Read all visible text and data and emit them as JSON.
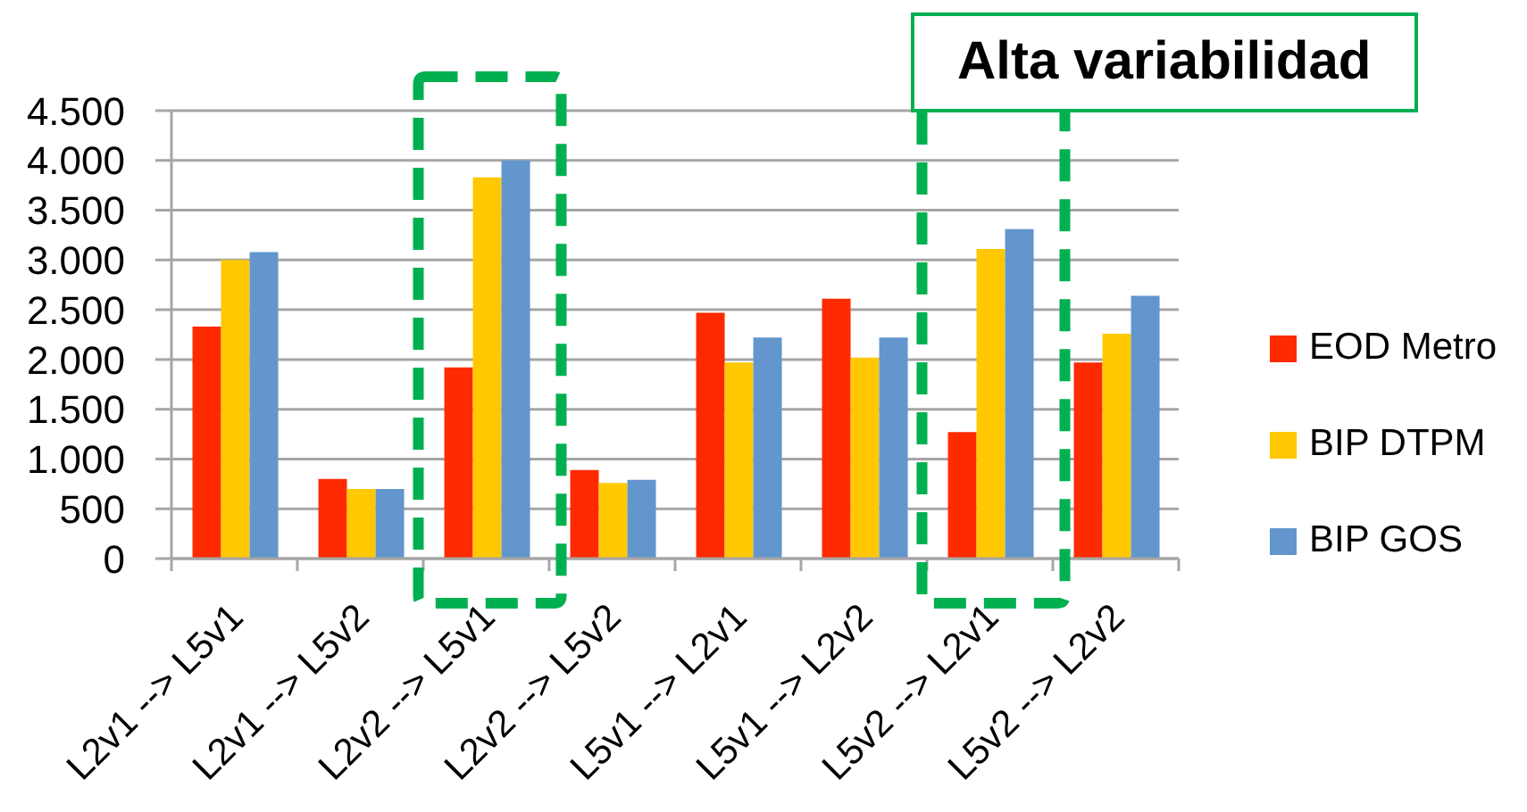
{
  "chart_data": {
    "type": "bar",
    "categories": [
      "L2v1 --> L5v1",
      "L2v1 --> L5v2",
      "L2v2 --> L5v1",
      "L2v2 --> L5v2",
      "L5v1 --> L2v1",
      "L5v1 --> L2v2",
      "L5v2 --> L2v1",
      "L5v2 --> L2v2"
    ],
    "series": [
      {
        "name": "EOD Metro",
        "color": "#ff2a00",
        "values": [
          2330,
          800,
          1920,
          890,
          2470,
          2610,
          1270,
          1970
        ]
      },
      {
        "name": "BIP DTPM",
        "color": "#ffc800",
        "values": [
          3000,
          700,
          3830,
          760,
          1970,
          2020,
          3110,
          2260
        ]
      },
      {
        "name": "BIP GOS",
        "color": "#6296cc",
        "values": [
          3080,
          700,
          4000,
          790,
          2220,
          2220,
          3310,
          2640
        ]
      }
    ],
    "ylim": [
      0,
      4500
    ],
    "yticks": [
      0,
      500,
      {
        "value": 1000,
        "label": "1.000"
      },
      {
        "value": 1500,
        "label": "1.500"
      },
      {
        "value": 2000,
        "label": "2.000"
      },
      {
        "value": 2500,
        "label": "2.500"
      },
      {
        "value": 3000,
        "label": "3.000"
      },
      {
        "value": 3500,
        "label": "3.500"
      },
      {
        "value": 4000,
        "label": "4.000"
      },
      {
        "value": 4500,
        "label": "4.500"
      }
    ],
    "grid": "y",
    "legend": "right",
    "annotations": [
      "Alta variabilidad"
    ]
  }
}
